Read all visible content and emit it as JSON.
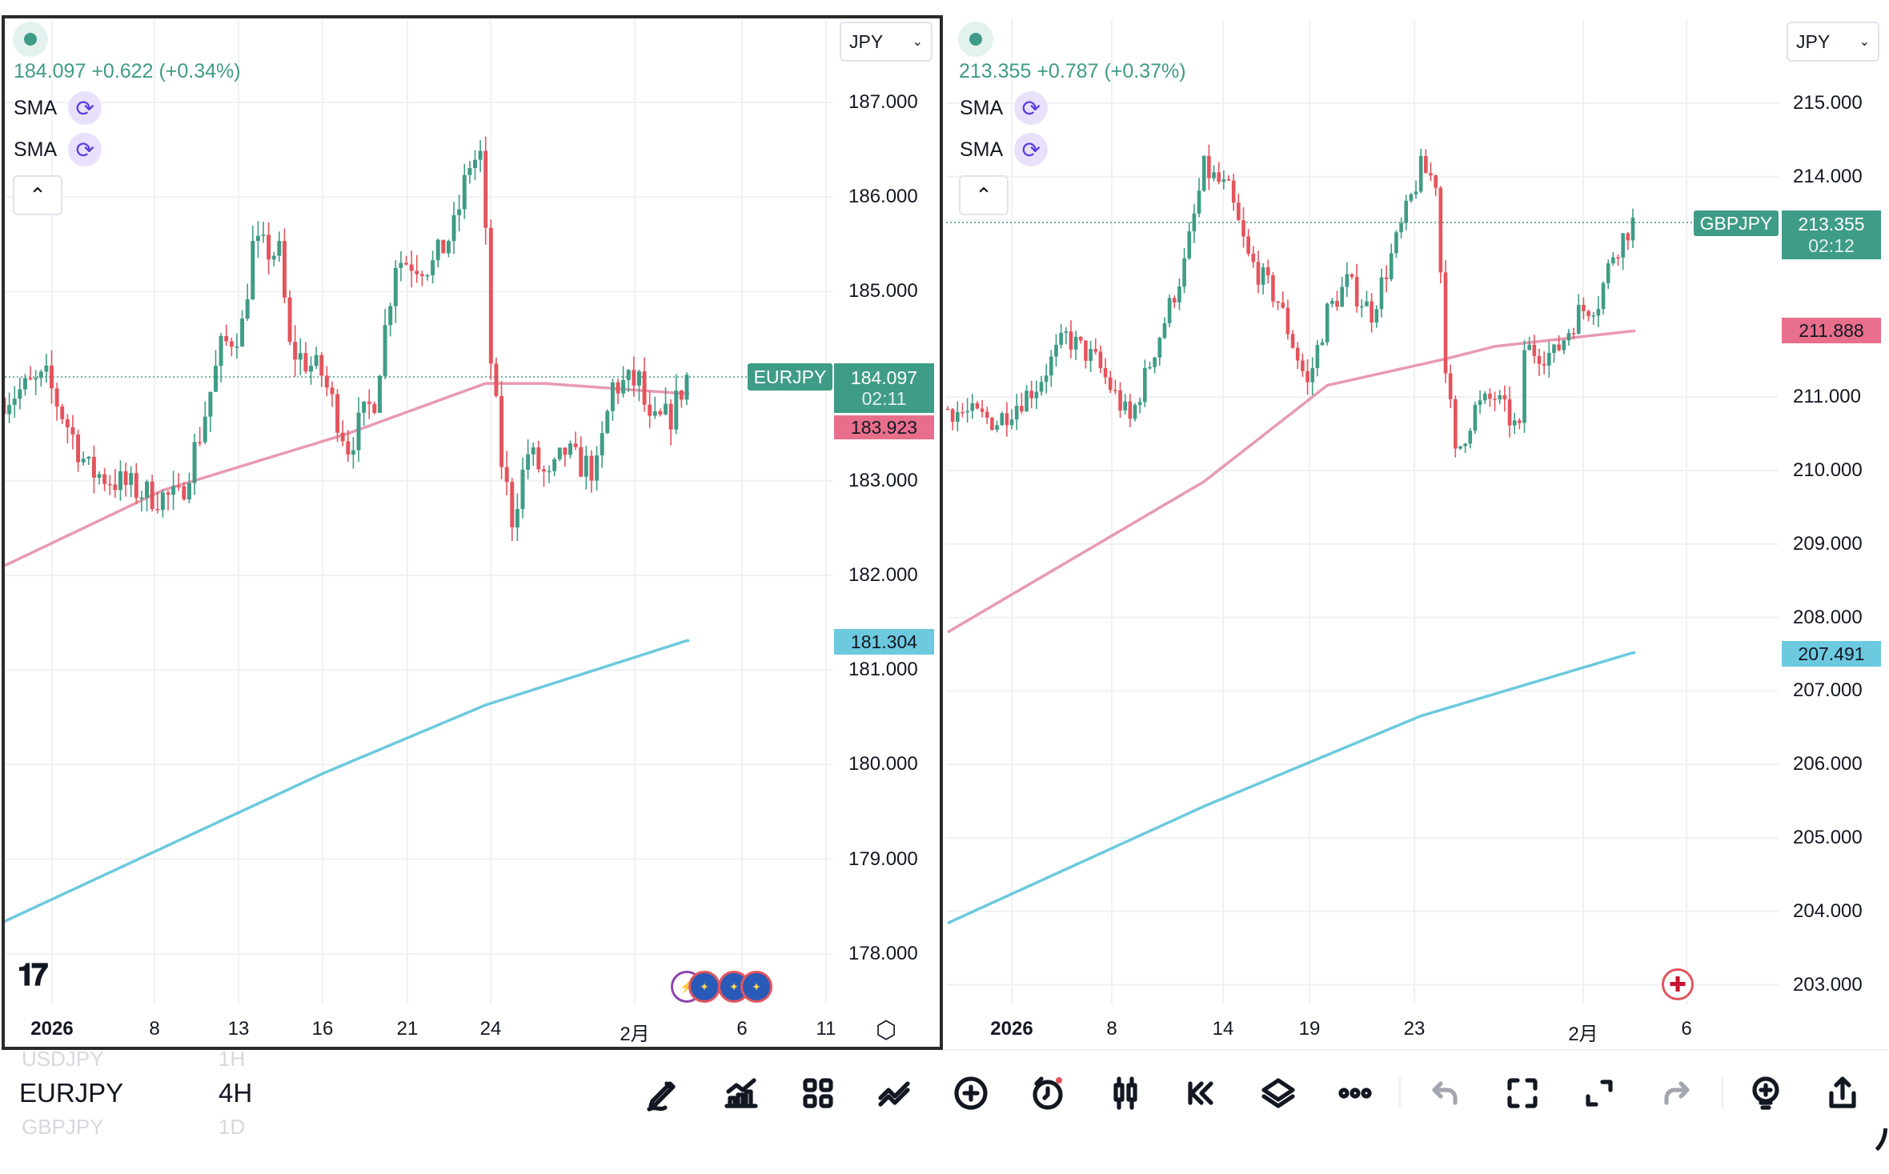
{
  "colors": {
    "up": "#3f9c86",
    "down": "#e4545d",
    "sma_short": "#e89ab0",
    "sma_long": "#6cc9de",
    "grid": "#f0f1f4"
  },
  "left_chart": {
    "symbol": "EURJPY",
    "currency": "JPY",
    "price": "184.097",
    "change": "+0.622",
    "change_pct": "(+0.34%)",
    "indicators": [
      {
        "label": "SMA"
      },
      {
        "label": "SMA"
      }
    ],
    "countdown": "02:11",
    "sma_short_value": "183.923",
    "sma_long_value": "181.304",
    "price_ticks": [
      "187.000",
      "186.000",
      "185.000",
      "183.000",
      "182.000",
      "181.000",
      "180.000",
      "179.000",
      "178.000"
    ],
    "time_ticks": [
      "2026",
      "8",
      "13",
      "16",
      "21",
      "24",
      "2月",
      "6",
      "11"
    ],
    "chart_data": {
      "type": "candlestick",
      "ylim": [
        177.6,
        187.4
      ],
      "candle_count": 130,
      "close_path": [
        [
          0,
          183.88
        ],
        [
          8,
          184.07
        ],
        [
          16,
          183.11
        ],
        [
          27,
          182.86
        ],
        [
          33,
          182.8
        ],
        [
          37,
          183.5
        ],
        [
          41,
          184.39
        ],
        [
          45,
          184.64
        ],
        [
          47,
          185.47
        ],
        [
          52,
          185.4
        ],
        [
          54,
          184.39
        ],
        [
          60,
          184.13
        ],
        [
          65,
          183.37
        ],
        [
          70,
          183.88
        ],
        [
          74,
          185.34
        ],
        [
          81,
          185.28
        ],
        [
          85,
          185.66
        ],
        [
          88,
          186.36
        ],
        [
          90,
          186.43
        ],
        [
          91,
          185.54
        ],
        [
          92,
          184.26
        ],
        [
          94,
          183.2
        ],
        [
          96,
          182.61
        ],
        [
          99,
          183.3
        ],
        [
          103,
          182.99
        ],
        [
          106,
          183.31
        ],
        [
          108,
          183.2
        ],
        [
          112,
          183.11
        ],
        [
          115,
          184.0
        ],
        [
          120,
          184.05
        ],
        [
          122,
          183.56
        ],
        [
          126,
          183.69
        ],
        [
          129,
          184.1
        ]
      ],
      "sma_short": [
        [
          0,
          182.1
        ],
        [
          30,
          182.9
        ],
        [
          65,
          183.5
        ],
        [
          91,
          184.03
        ],
        [
          102,
          184.03
        ],
        [
          129,
          183.92
        ]
      ],
      "sma_long": [
        [
          0,
          178.34
        ],
        [
          60,
          179.9
        ],
        [
          91,
          180.63
        ],
        [
          129,
          181.31
        ]
      ]
    }
  },
  "right_chart": {
    "symbol": "GBPJPY",
    "currency": "JPY",
    "price": "213.355",
    "change": "+0.787",
    "change_pct": "(+0.37%)",
    "indicators": [
      {
        "label": "SMA"
      },
      {
        "label": "SMA"
      }
    ],
    "countdown": "02:12",
    "sma_short_value": "211.888",
    "sma_long_value": "207.491",
    "price_ticks": [
      "215.000",
      "214.000",
      "211.000",
      "210.000",
      "209.000",
      "208.000",
      "207.000",
      "206.000",
      "205.000",
      "204.000",
      "203.000"
    ],
    "time_ticks": [
      "2026",
      "8",
      "14",
      "19",
      "23",
      "2月",
      "6"
    ],
    "chart_data": {
      "type": "candlestick",
      "ylim": [
        202.6,
        215.4
      ],
      "candle_count": 140,
      "close_path": [
        [
          0,
          210.84
        ],
        [
          10,
          210.67
        ],
        [
          18,
          211.16
        ],
        [
          24,
          211.82
        ],
        [
          30,
          211.49
        ],
        [
          37,
          210.67
        ],
        [
          42,
          211.66
        ],
        [
          48,
          212.8
        ],
        [
          52,
          214.11
        ],
        [
          57,
          213.79
        ],
        [
          61,
          212.89
        ],
        [
          67,
          212.31
        ],
        [
          73,
          211.16
        ],
        [
          77,
          212.15
        ],
        [
          81,
          212.56
        ],
        [
          86,
          212.15
        ],
        [
          92,
          213.3
        ],
        [
          96,
          214.11
        ],
        [
          99,
          213.95
        ],
        [
          101,
          211.49
        ],
        [
          103,
          210.18
        ],
        [
          107,
          210.84
        ],
        [
          111,
          211.0
        ],
        [
          116,
          210.51
        ],
        [
          117,
          211.66
        ],
        [
          123,
          211.57
        ],
        [
          128,
          212.15
        ],
        [
          132,
          212.31
        ],
        [
          135,
          212.97
        ],
        [
          139,
          213.38
        ]
      ],
      "sma_short": [
        [
          0,
          207.8
        ],
        [
          52,
          209.85
        ],
        [
          77,
          211.16
        ],
        [
          101,
          211.52
        ],
        [
          111,
          211.69
        ],
        [
          139,
          211.9
        ]
      ],
      "sma_long": [
        [
          0,
          203.84
        ],
        [
          52,
          205.43
        ],
        [
          96,
          206.66
        ],
        [
          139,
          207.52
        ]
      ]
    }
  },
  "watchlist": [
    {
      "symbol": "USDJPY",
      "interval": "1H"
    },
    {
      "symbol": "EURJPY",
      "interval": "4H"
    },
    {
      "symbol": "GBPJPY",
      "interval": "1D"
    }
  ],
  "toolbar": [
    "drawing-pen",
    "indicators",
    "layout-grid",
    "compare",
    "add",
    "alert",
    "candle-style",
    "replay",
    "layers",
    "more",
    "undo",
    "fullscreen-select",
    "expand",
    "redo",
    "add-indicator-bulb",
    "share"
  ]
}
